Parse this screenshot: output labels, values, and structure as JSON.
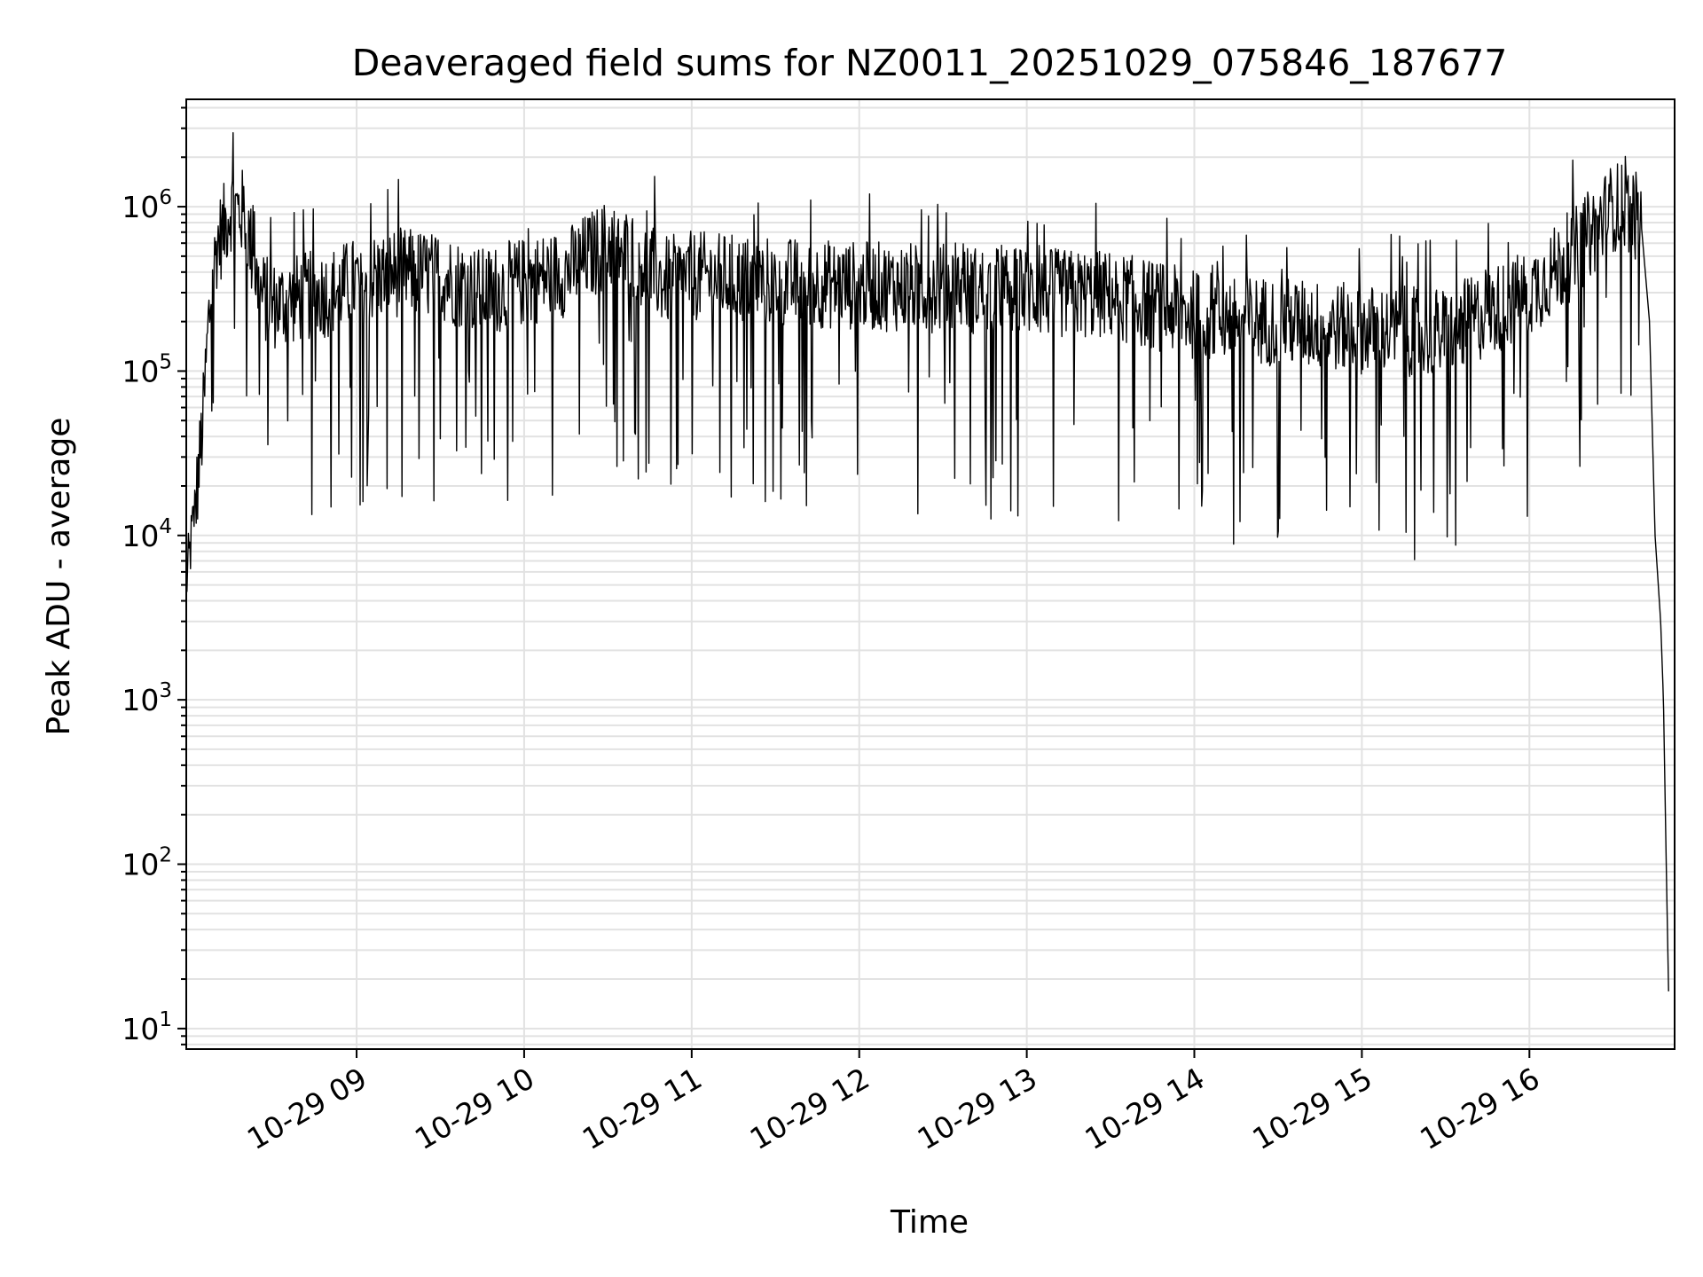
{
  "chart_data": {
    "type": "line",
    "title": "Deaveraged field sums for NZ0011_20251029_075846_187677",
    "xlabel": "Time",
    "ylabel": "Peak ADU - average",
    "yscale": "log",
    "grid": true,
    "x_ticks": [
      "10-29 09",
      "10-29 10",
      "10-29 11",
      "10-29 12",
      "10-29 13",
      "10-29 14",
      "10-29 15",
      "10-29 16"
    ],
    "y_ticks": [
      {
        "base": "10",
        "exp": "1"
      },
      {
        "base": "10",
        "exp": "2"
      },
      {
        "base": "10",
        "exp": "3"
      },
      {
        "base": "10",
        "exp": "4"
      },
      {
        "base": "10",
        "exp": "5"
      },
      {
        "base": "10",
        "exp": "6"
      }
    ],
    "xlim": [
      "2025-10-29 07:59",
      "2025-10-29 16:52"
    ],
    "ylim": [
      7.5,
      4500000
    ],
    "line_color": "#000000",
    "series": [
      {
        "x": [
          "2025-10-29 07:59",
          "2025-10-29 08:01",
          "2025-10-29 08:03",
          "2025-10-29 08:05",
          "2025-10-29 08:07",
          "2025-10-29 08:10",
          "2025-10-29 08:12",
          "2025-10-29 08:15",
          "2025-10-29 08:20",
          "2025-10-29 08:25",
          "2025-10-29 08:30",
          "2025-10-29 08:40",
          "2025-10-29 08:50",
          "2025-10-29 09:00",
          "2025-10-29 09:15",
          "2025-10-29 09:30",
          "2025-10-29 09:45",
          "2025-10-29 10:00",
          "2025-10-29 10:15",
          "2025-10-29 10:30",
          "2025-10-29 10:40",
          "2025-10-29 10:50",
          "2025-10-29 11:00",
          "2025-10-29 11:30",
          "2025-10-29 12:00",
          "2025-10-29 12:30",
          "2025-10-29 13:00",
          "2025-10-29 13:30",
          "2025-10-29 14:00",
          "2025-10-29 14:30",
          "2025-10-29 15:00",
          "2025-10-29 15:30",
          "2025-10-29 16:00",
          "2025-10-29 16:15",
          "2025-10-29 16:25",
          "2025-10-29 16:30",
          "2025-10-29 16:35",
          "2025-10-29 16:40",
          "2025-10-29 16:43",
          "2025-10-29 16:45",
          "2025-10-29 16:47",
          "2025-10-29 16:48",
          "2025-10-29 16:49",
          "2025-10-29 16:50"
        ],
        "y": [
          5000,
          10000,
          20000,
          50000,
          200000,
          600000,
          700000,
          1000000,
          900000,
          300000,
          250000,
          280000,
          300000,
          350000,
          400000,
          380000,
          300000,
          350000,
          400000,
          600000,
          500000,
          350000,
          380000,
          350000,
          330000,
          320000,
          300000,
          290000,
          220000,
          200000,
          180000,
          170000,
          300000,
          500000,
          800000,
          1000000,
          1000000,
          800000,
          200000,
          10000,
          3000,
          1000,
          100,
          12
        ]
      }
    ]
  }
}
